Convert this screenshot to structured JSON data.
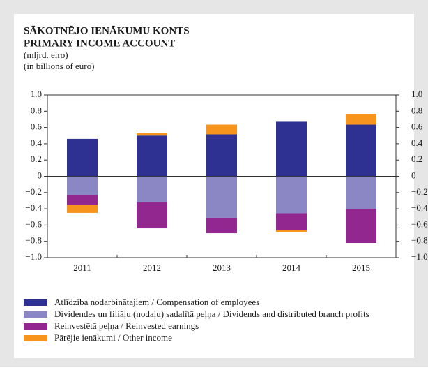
{
  "chart_data": {
    "type": "bar",
    "stacked": true,
    "title": "SĀKOTNĒJO IENĀKUMU KONTS",
    "title2": "PRIMARY INCOME ACCOUNT",
    "subtitle": "(mljrd. eiro)",
    "subtitle2": "(in billions of euro)",
    "categories": [
      "2011",
      "2012",
      "2013",
      "2014",
      "2015"
    ],
    "series": [
      {
        "name": "Atlīdzība nodarbinātajiem / Compensation of employees",
        "color": "#2e3192",
        "values": [
          0.46,
          0.5,
          0.515,
          0.67,
          0.635
        ]
      },
      {
        "name": "Dividendes un filiāļu (nodaļu) sadalītā peļņa / Dividends and distributed branch profits",
        "color": "#8b87c4",
        "values": [
          -0.23,
          -0.32,
          -0.51,
          -0.455,
          -0.4
        ]
      },
      {
        "name": "Reinvestētā peļņa / Reinvested earnings",
        "color": "#92278f",
        "values": [
          -0.12,
          -0.32,
          -0.19,
          -0.21,
          -0.42
        ]
      },
      {
        "name": "Pārējie ienākumi / Other income",
        "color": "#f7941d",
        "values": [
          -0.1,
          0.03,
          0.12,
          -0.02,
          0.13
        ]
      }
    ],
    "ylim": [
      -1.0,
      1.0
    ],
    "yticks": [
      {
        "value": 1.0,
        "label": "1.0"
      },
      0.8,
      0.6,
      0.4,
      0.2,
      0,
      {
        "value": -0.2,
        "label": "−0.2"
      },
      {
        "value": -0.4,
        "label": "−0.4"
      },
      {
        "value": -0.6,
        "label": "−0.6"
      },
      {
        "value": -0.8,
        "label": "−0.8"
      },
      {
        "value": -1.0,
        "label": "−1.0"
      }
    ],
    "grid": false
  }
}
